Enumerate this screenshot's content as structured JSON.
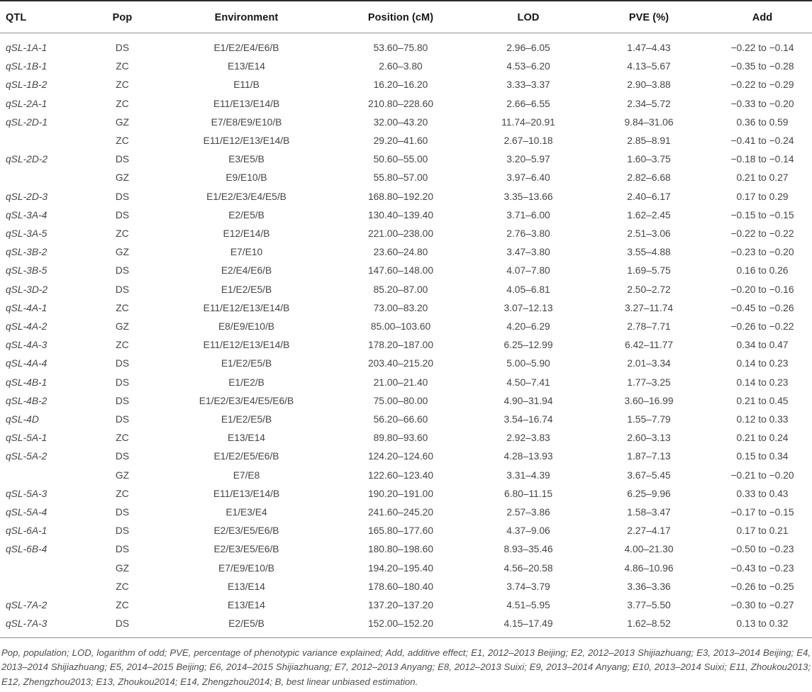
{
  "colors": {
    "background": "#ffffff",
    "rule_dark": "#2b2b2b",
    "rule_light": "#8f8f8f",
    "header_text": "#161616",
    "body_text": "#454545",
    "footnote_text": "#4d4d4d"
  },
  "table": {
    "columns": [
      {
        "key": "qtl",
        "label": "QTL"
      },
      {
        "key": "pop",
        "label": "Pop"
      },
      {
        "key": "env",
        "label": "Environment"
      },
      {
        "key": "pos",
        "label": "Position (cM)"
      },
      {
        "key": "lod",
        "label": "LOD"
      },
      {
        "key": "pve",
        "label": "PVE (%)"
      },
      {
        "key": "add",
        "label": "Add"
      }
    ],
    "rows": [
      {
        "qtl": "qSL-1A-1",
        "pop": "DS",
        "env": "E1/E2/E4/E6/B",
        "pos": "53.60–75.80",
        "lod": "2.96–6.05",
        "pve": "1.47–4.43",
        "add": "−0.22 to −0.14"
      },
      {
        "qtl": "qSL-1B-1",
        "pop": "ZC",
        "env": "E13/E14",
        "pos": "2.60–3.80",
        "lod": "4.53–6.20",
        "pve": "4.13–5.67",
        "add": "−0.35 to −0.28"
      },
      {
        "qtl": "qSL-1B-2",
        "pop": "ZC",
        "env": "E11/B",
        "pos": "16.20–16.20",
        "lod": "3.33–3.37",
        "pve": "2.90–3.88",
        "add": "−0.22 to −0.29"
      },
      {
        "qtl": "qSL-2A-1",
        "pop": "ZC",
        "env": "E11/E13/E14/B",
        "pos": "210.80–228.60",
        "lod": "2.66–6.55",
        "pve": "2.34–5.72",
        "add": "−0.33 to −0.20"
      },
      {
        "qtl": "qSL-2D-1",
        "pop": "GZ",
        "env": "E7/E8/E9/E10/B",
        "pos": "32.00–43.20",
        "lod": "11.74–20.91",
        "pve": "9.84–31.06",
        "add": "0.36 to 0.59"
      },
      {
        "qtl": "",
        "pop": "ZC",
        "env": "E11/E12/E13/E14/B",
        "pos": "29.20–41.60",
        "lod": "2.67–10.18",
        "pve": "2.85–8.91",
        "add": "−0.41 to −0.24"
      },
      {
        "qtl": "qSL-2D-2",
        "pop": "DS",
        "env": "E3/E5/B",
        "pos": "50.60–55.00",
        "lod": "3.20–5.97",
        "pve": "1.60–3.75",
        "add": "−0.18 to −0.14"
      },
      {
        "qtl": "",
        "pop": "GZ",
        "env": "E9/E10/B",
        "pos": "55.80–57.00",
        "lod": "3.97–6.40",
        "pve": "2.82–6.68",
        "add": "0.21 to 0.27"
      },
      {
        "qtl": "qSL-2D-3",
        "pop": "DS",
        "env": "E1/E2/E3/E4/E5/B",
        "pos": "168.80–192.20",
        "lod": "3.35–13.66",
        "pve": "2.40–6.17",
        "add": "0.17 to 0.29"
      },
      {
        "qtl": "qSL-3A-4",
        "pop": "DS",
        "env": "E2/E5/B",
        "pos": "130.40–139.40",
        "lod": "3.71–6.00",
        "pve": "1.62–2.45",
        "add": "−0.15 to −0.15"
      },
      {
        "qtl": "qSL-3A-5",
        "pop": "ZC",
        "env": "E12/E14/B",
        "pos": "221.00–238.00",
        "lod": "2.76–3.80",
        "pve": "2.51–3.06",
        "add": "−0.22 to −0.22"
      },
      {
        "qtl": "qSL-3B-2",
        "pop": "GZ",
        "env": "E7/E10",
        "pos": "23.60–24.80",
        "lod": "3.47–3.80",
        "pve": "3.55–4.88",
        "add": "−0.23 to −0.20"
      },
      {
        "qtl": "qSL-3B-5",
        "pop": "DS",
        "env": "E2/E4/E6/B",
        "pos": "147.60–148.00",
        "lod": "4.07–7.80",
        "pve": "1.69–5.75",
        "add": "0.16 to 0.26"
      },
      {
        "qtl": "qSL-3D-2",
        "pop": "DS",
        "env": "E1/E2/E5/B",
        "pos": "85.20–87.00",
        "lod": "4.05–6.81",
        "pve": "2.50–2.72",
        "add": "−0.20 to −0.16"
      },
      {
        "qtl": "qSL-4A-1",
        "pop": "ZC",
        "env": "E11/E12/E13/E14/B",
        "pos": "73.00–83.20",
        "lod": "3.07–12.13",
        "pve": "3.27–11.74",
        "add": "−0.45 to −0.26"
      },
      {
        "qtl": "qSL-4A-2",
        "pop": "GZ",
        "env": "E8/E9/E10/B",
        "pos": "85.00–103.60",
        "lod": "4.20–6.29",
        "pve": "2.78–7.71",
        "add": "−0.26 to −0.22"
      },
      {
        "qtl": "qSL-4A-3",
        "pop": "ZC",
        "env": "E11/E12/E13/E14/B",
        "pos": "178.20–187.00",
        "lod": "6.25–12.99",
        "pve": "6.42–11.77",
        "add": "0.34 to 0.47"
      },
      {
        "qtl": "qSL-4A-4",
        "pop": "DS",
        "env": "E1/E2/E5/B",
        "pos": "203.40–215.20",
        "lod": "5.00–5.90",
        "pve": "2.01–3.34",
        "add": "0.14 to 0.23"
      },
      {
        "qtl": "qSL-4B-1",
        "pop": "DS",
        "env": "E1/E2/B",
        "pos": "21.00–21.40",
        "lod": "4.50–7.41",
        "pve": "1.77–3.25",
        "add": "0.14 to 0.23"
      },
      {
        "qtl": "qSL-4B-2",
        "pop": "DS",
        "env": "E1/E2/E3/E4/E5/E6/B",
        "pos": "75.00–80.00",
        "lod": "4.90–31.94",
        "pve": "3.60–16.99",
        "add": "0.21 to 0.45"
      },
      {
        "qtl": "qSL-4D",
        "pop": "DS",
        "env": "E1/E2/E5/B",
        "pos": "56.20–66.60",
        "lod": "3.54–16.74",
        "pve": "1.55–7.79",
        "add": "0.12 to 0.33"
      },
      {
        "qtl": "qSL-5A-1",
        "pop": "ZC",
        "env": "E13/E14",
        "pos": "89.80–93.60",
        "lod": "2.92–3.83",
        "pve": "2.60–3.13",
        "add": "0.21 to 0.24"
      },
      {
        "qtl": "qSL-5A-2",
        "pop": "DS",
        "env": "E1/E2/E5/E6/B",
        "pos": "124.20–124.60",
        "lod": "4.28–13.93",
        "pve": "1.87–7.13",
        "add": "0.15 to 0.34"
      },
      {
        "qtl": "",
        "pop": "GZ",
        "env": "E7/E8",
        "pos": "122.60–123.40",
        "lod": "3.31–4.39",
        "pve": "3.67–5.45",
        "add": "−0.21 to −0.20"
      },
      {
        "qtl": "qSL-5A-3",
        "pop": "ZC",
        "env": "E11/E13/E14/B",
        "pos": "190.20–191.00",
        "lod": "6.80–11.15",
        "pve": "6.25–9.96",
        "add": "0.33 to 0.43"
      },
      {
        "qtl": "qSL-5A-4",
        "pop": "DS",
        "env": "E1/E3/E4",
        "pos": "241.60–245.20",
        "lod": "2.57–3.86",
        "pve": "1.58–3.47",
        "add": "−0.17 to −0.15"
      },
      {
        "qtl": "qSL-6A-1",
        "pop": "DS",
        "env": "E2/E3/E5/E6/B",
        "pos": "165.80–177.60",
        "lod": "4.37–9.06",
        "pve": "2.27–4.17",
        "add": "0.17 to 0.21"
      },
      {
        "qtl": "qSL-6B-4",
        "pop": "DS",
        "env": "E2/E3/E5/E6/B",
        "pos": "180.80–198.60",
        "lod": "8.93–35.46",
        "pve": "4.00–21.30",
        "add": "−0.50 to −0.23"
      },
      {
        "qtl": "",
        "pop": "GZ",
        "env": "E7/E9/E10/B",
        "pos": "194.20–195.40",
        "lod": "4.56–20.58",
        "pve": "4.86–10.96",
        "add": "−0.43 to −0.23"
      },
      {
        "qtl": "",
        "pop": "ZC",
        "env": "E13/E14",
        "pos": "178.60–180.40",
        "lod": "3.74–3.79",
        "pve": "3.36–3.36",
        "add": "−0.26 to −0.25"
      },
      {
        "qtl": "qSL-7A-2",
        "pop": "ZC",
        "env": "E13/E14",
        "pos": "137.20–137.20",
        "lod": "4.51–5.95",
        "pve": "3.77–5.50",
        "add": "−0.30 to −0.27"
      },
      {
        "qtl": "qSL-7A-3",
        "pop": "DS",
        "env": "E2/E5/B",
        "pos": "152.00–152.20",
        "lod": "4.15–17.49",
        "pve": "1.62–8.52",
        "add": "0.13 to 0.32"
      }
    ]
  },
  "footnote": {
    "text": "Pop, population; LOD, logarithm of odd; PVE, percentage of phenotypic variance explained; Add, additive effect; E1, 2012–2013 Beijing; E2, 2012–2013 Shijiazhuang; E3, 2013–2014 Beijing; E4, 2013–2014 Shijiazhuang; E5, 2014–2015 Beijing; E6, 2014–2015 Shijiazhuang; E7, 2012–2013 Anyang; E8, 2012–2013 Suixi; E9, 2013–2014 Anyang; E10, 2013–2014 Suixi; E11, Zhoukou2013; E12, Zhengzhou2013; E13, Zhoukou2014; E14, Zhengzhou2014; B, best linear unbiased estimation."
  }
}
